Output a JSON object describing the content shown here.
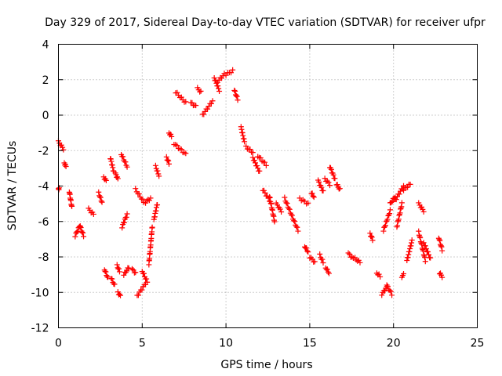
{
  "chart_data": {
    "type": "scatter",
    "title": "Day 329 of 2017, Sidereal Day-to-day VTEC variation (SDTVAR) for receiver ufpr",
    "xlabel": "GPS time / hours",
    "ylabel": "SDTVAR / TECUs",
    "xlim": [
      0,
      25
    ],
    "ylim": [
      -12,
      4
    ],
    "xticks": [
      "0",
      "5",
      "10",
      "15",
      "20",
      "25"
    ],
    "yticks": [
      "-12",
      "-10",
      "-8",
      "-6",
      "-4",
      "-2",
      "0",
      "2",
      "4"
    ],
    "grid": true,
    "marker": "+",
    "marker_color": "#ff0000",
    "series": [
      {
        "name": "SDTVAR",
        "segments": [
          {
            "x": [
              0.0,
              0.3
            ],
            "y": [
              -1.5,
              -1.9
            ]
          },
          {
            "x": [
              0.0,
              0.05
            ],
            "y": [
              -4.2,
              -4.1
            ]
          },
          {
            "x": [
              0.35,
              0.45
            ],
            "y": [
              -2.7,
              -2.9
            ]
          },
          {
            "x": [
              0.65,
              0.8
            ],
            "y": [
              -4.3,
              -5.2
            ]
          },
          {
            "x": [
              1.0,
              1.3
            ],
            "y": [
              -6.8,
              -6.2
            ]
          },
          {
            "x": [
              1.3,
              1.5
            ],
            "y": [
              -6.3,
              -6.8
            ]
          },
          {
            "x": [
              1.8,
              2.1
            ],
            "y": [
              -5.3,
              -5.6
            ]
          },
          {
            "x": [
              2.4,
              2.6
            ],
            "y": [
              -4.4,
              -4.9
            ]
          },
          {
            "x": [
              2.7,
              2.85
            ],
            "y": [
              -3.5,
              -3.7
            ]
          },
          {
            "x": [
              2.75,
              2.95
            ],
            "y": [
              -8.7,
              -9.2
            ]
          },
          {
            "x": [
              3.1,
              3.3
            ],
            "y": [
              -2.4,
              -3.2
            ]
          },
          {
            "x": [
              3.15,
              3.35
            ],
            "y": [
              -9.2,
              -9.6
            ]
          },
          {
            "x": [
              3.4,
              3.55
            ],
            "y": [
              -3.3,
              -3.6
            ]
          },
          {
            "x": [
              3.5,
              3.65
            ],
            "y": [
              -8.5,
              -8.8
            ]
          },
          {
            "x": [
              3.55,
              3.7
            ],
            "y": [
              -10.0,
              -10.2
            ]
          },
          {
            "x": [
              3.75,
              4.1
            ],
            "y": [
              -2.2,
              -2.9
            ]
          },
          {
            "x": [
              3.8,
              4.1
            ],
            "y": [
              -6.3,
              -5.6
            ]
          },
          {
            "x": [
              3.9,
              4.2
            ],
            "y": [
              -9.0,
              -8.6
            ]
          },
          {
            "x": [
              4.4,
              4.6
            ],
            "y": [
              -8.7,
              -8.9
            ]
          },
          {
            "x": [
              4.6,
              5.1
            ],
            "y": [
              -4.2,
              -4.9
            ]
          },
          {
            "x": [
              4.7,
              5.2
            ],
            "y": [
              -10.2,
              -9.5
            ]
          },
          {
            "x": [
              5.0,
              5.3
            ],
            "y": [
              -8.8,
              -9.4
            ]
          },
          {
            "x": [
              5.2,
              5.5
            ],
            "y": [
              -4.9,
              -4.7
            ]
          },
          {
            "x": [
              5.4,
              5.6
            ],
            "y": [
              -8.4,
              -6.3
            ]
          },
          {
            "x": [
              5.7,
              5.9
            ],
            "y": [
              -5.9,
              -5.0
            ]
          },
          {
            "x": [
              5.8,
              6.0
            ],
            "y": [
              -2.9,
              -3.4
            ]
          },
          {
            "x": [
              6.45,
              6.6
            ],
            "y": [
              -2.4,
              -2.7
            ]
          },
          {
            "x": [
              6.6,
              6.75
            ],
            "y": [
              -1.0,
              -1.2
            ]
          },
          {
            "x": [
              6.9,
              7.6
            ],
            "y": [
              -1.6,
              -2.2
            ]
          },
          {
            "x": [
              7.0,
              7.6
            ],
            "y": [
              1.3,
              0.7
            ]
          },
          {
            "x": [
              7.9,
              8.2
            ],
            "y": [
              0.7,
              0.5
            ]
          },
          {
            "x": [
              8.3,
              8.5
            ],
            "y": [
              1.5,
              1.3
            ]
          },
          {
            "x": [
              8.6,
              9.2
            ],
            "y": [
              0.0,
              0.8
            ]
          },
          {
            "x": [
              9.3,
              9.6
            ],
            "y": [
              2.1,
              1.4
            ]
          },
          {
            "x": [
              9.5,
              9.9
            ],
            "y": [
              1.9,
              2.3
            ]
          },
          {
            "x": [
              10.0,
              10.4
            ],
            "y": [
              2.3,
              2.5
            ]
          },
          {
            "x": [
              10.5,
              10.7
            ],
            "y": [
              1.4,
              0.9
            ]
          },
          {
            "x": [
              10.9,
              11.1
            ],
            "y": [
              -0.7,
              -1.5
            ]
          },
          {
            "x": [
              11.2,
              11.6
            ],
            "y": [
              -1.8,
              -2.1
            ]
          },
          {
            "x": [
              11.6,
              12.0
            ],
            "y": [
              -2.4,
              -3.2
            ]
          },
          {
            "x": [
              11.9,
              12.4
            ],
            "y": [
              -2.3,
              -2.8
            ]
          },
          {
            "x": [
              12.2,
              12.6
            ],
            "y": [
              -4.2,
              -4.8
            ]
          },
          {
            "x": [
              12.6,
              12.9
            ],
            "y": [
              -4.6,
              -6.0
            ]
          },
          {
            "x": [
              13.0,
              13.3
            ],
            "y": [
              -5.0,
              -5.4
            ]
          },
          {
            "x": [
              13.5,
              14.3
            ],
            "y": [
              -4.7,
              -6.5
            ]
          },
          {
            "x": [
              14.4,
              14.9
            ],
            "y": [
              -4.7,
              -5.0
            ]
          },
          {
            "x": [
              14.7,
              14.9
            ],
            "y": [
              -7.4,
              -7.7
            ]
          },
          {
            "x": [
              15.0,
              15.3
            ],
            "y": [
              -8.0,
              -8.3
            ]
          },
          {
            "x": [
              15.1,
              15.25
            ],
            "y": [
              -4.4,
              -4.6
            ]
          },
          {
            "x": [
              15.5,
              15.8
            ],
            "y": [
              -3.7,
              -4.3
            ]
          },
          {
            "x": [
              15.6,
              15.8
            ],
            "y": [
              -7.9,
              -8.3
            ]
          },
          {
            "x": [
              15.9,
              16.2
            ],
            "y": [
              -3.6,
              -3.9
            ]
          },
          {
            "x": [
              15.95,
              16.15
            ],
            "y": [
              -8.6,
              -8.9
            ]
          },
          {
            "x": [
              16.2,
              16.5
            ],
            "y": [
              -2.9,
              -3.6
            ]
          },
          {
            "x": [
              16.6,
              16.8
            ],
            "y": [
              -3.9,
              -4.2
            ]
          },
          {
            "x": [
              17.3,
              17.6
            ],
            "y": [
              -7.8,
              -8.1
            ]
          },
          {
            "x": [
              17.7,
              18.0
            ],
            "y": [
              -8.1,
              -8.3
            ]
          },
          {
            "x": [
              18.6,
              18.75
            ],
            "y": [
              -6.7,
              -7.0
            ]
          },
          {
            "x": [
              19.0,
              19.2
            ],
            "y": [
              -8.9,
              -9.1
            ]
          },
          {
            "x": [
              19.3,
              19.6
            ],
            "y": [
              -10.1,
              -9.7
            ]
          },
          {
            "x": [
              19.4,
              19.8
            ],
            "y": [
              -6.5,
              -5.4
            ]
          },
          {
            "x": [
              19.6,
              19.9
            ],
            "y": [
              -9.6,
              -10.1
            ]
          },
          {
            "x": [
              19.8,
              20.1
            ],
            "y": [
              -5.0,
              -4.6
            ]
          },
          {
            "x": [
              20.1,
              20.6
            ],
            "y": [
              -4.8,
              -4.0
            ]
          },
          {
            "x": [
              20.2,
              20.5
            ],
            "y": [
              -6.3,
              -5.0
            ]
          },
          {
            "x": [
              20.5,
              20.6
            ],
            "y": [
              -9.1,
              -9.0
            ]
          },
          {
            "x": [
              20.6,
              21.0
            ],
            "y": [
              -4.2,
              -3.9
            ]
          },
          {
            "x": [
              20.8,
              21.1
            ],
            "y": [
              -8.2,
              -7.1
            ]
          },
          {
            "x": [
              21.5,
              21.8
            ],
            "y": [
              -5.0,
              -5.4
            ]
          },
          {
            "x": [
              21.5,
              21.9
            ],
            "y": [
              -6.6,
              -8.2
            ]
          },
          {
            "x": [
              21.8,
              22.2
            ],
            "y": [
              -7.2,
              -8.1
            ]
          },
          {
            "x": [
              22.7,
              22.9
            ],
            "y": [
              -6.9,
              -7.6
            ]
          },
          {
            "x": [
              22.75,
              22.9
            ],
            "y": [
              -8.9,
              -9.1
            ]
          }
        ]
      }
    ]
  }
}
